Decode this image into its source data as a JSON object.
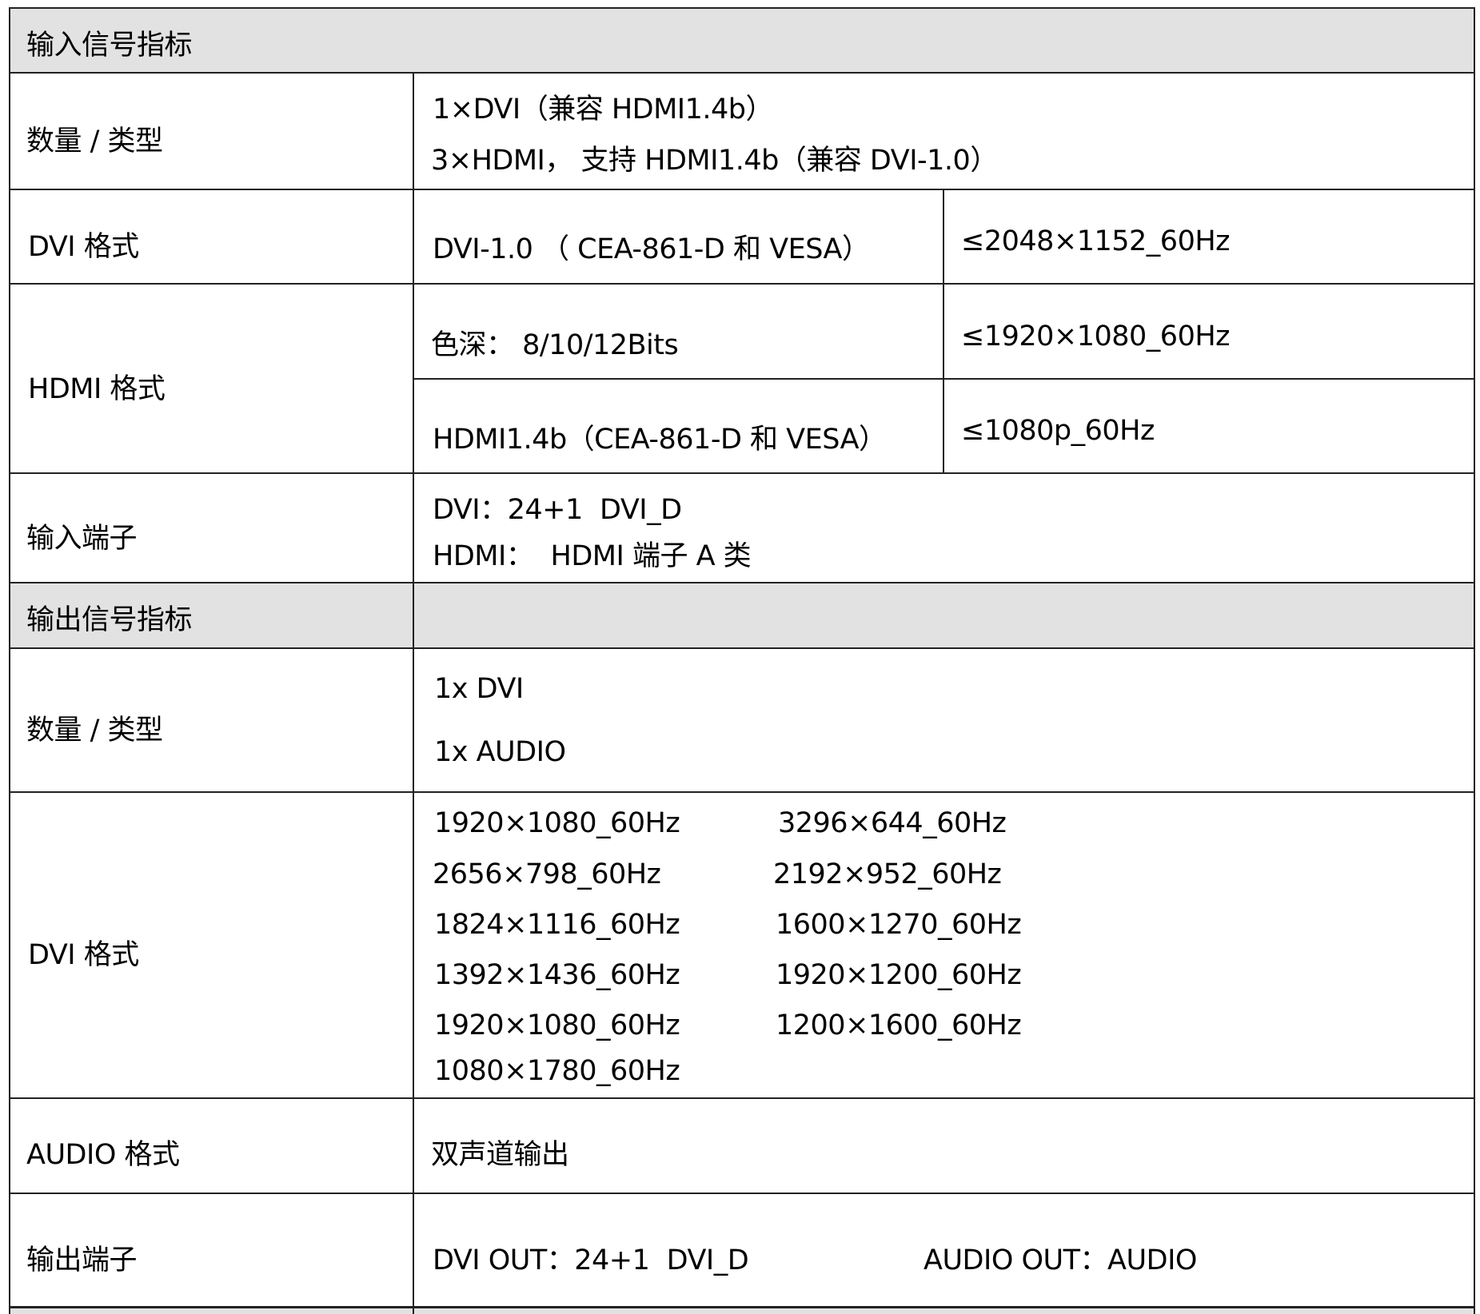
{
  "input": {
    "section_title": "输入信号指标",
    "count_type": {
      "label": "数量 / 类型",
      "lines": [
        "1×DVI（兼容 HDMI1.4b）",
        "3×HDMI， 支持 HDMI1.4b（兼容 DVI-1.0）"
      ]
    },
    "dvi_format": {
      "label": "DVI 格式",
      "spec": "DVI-1.0 （ CEA-861-D 和 VESA）",
      "max": "≤2048×1152_60Hz"
    },
    "hdmi_format": {
      "label": "HDMI 格式",
      "rows": [
        {
          "spec": "色深： 8/10/12Bits",
          "max": "≤1920×1080_60Hz"
        },
        {
          "spec": "HDMI1.4b（CEA-861-D 和 VESA）",
          "max": "≤1080p_60Hz"
        }
      ]
    },
    "ports": {
      "label": "输入端子",
      "lines": [
        "DVI：24+1  DVI_D",
        "HDMI：  HDMI 端子 A 类"
      ]
    }
  },
  "output": {
    "section_title": "输出信号指标",
    "count_type": {
      "label": "数量 / 类型",
      "lines": [
        "1x DVI",
        "1x AUDIO"
      ]
    },
    "dvi_format": {
      "label": "DVI 格式",
      "col1": [
        "1920×1080_60Hz",
        "2656×798_60Hz",
        "1824×1116_60Hz",
        "1392×1436_60Hz",
        "1920×1080_60Hz",
        "1080×1780_60Hz"
      ],
      "col2": [
        "3296×644_60Hz",
        "2192×952_60Hz",
        "1600×1270_60Hz",
        "1920×1200_60Hz",
        "1200×1600_60Hz"
      ]
    },
    "audio_format": {
      "label": "AUDIO 格式",
      "value": "双声道输出"
    },
    "ports": {
      "label": "输出端子",
      "dvi": "DVI OUT：24+1  DVI_D",
      "audio": "AUDIO OUT：AUDIO"
    }
  }
}
